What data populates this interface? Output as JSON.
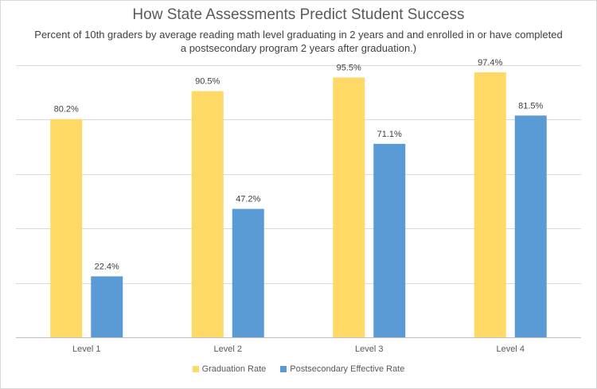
{
  "chart_data": {
    "type": "bar",
    "title": "How State Assessments  Predict Student Success",
    "subtitle": "Percent of 10th graders by average reading math level graduating in 2 years and and enrolled in or have completed a postsecondary program 2 years after graduation.)",
    "categories": [
      "Level 1",
      "Level 2",
      "Level 3",
      "Level 4"
    ],
    "series": [
      {
        "name": "Graduation Rate",
        "values": [
          80.2,
          90.5,
          95.5,
          97.4
        ],
        "labels": [
          "80.2%",
          "90.5%",
          "95.5%",
          "97.4%"
        ],
        "color": "#FFD966"
      },
      {
        "name": "Postsecondary Effective Rate",
        "values": [
          22.4,
          47.2,
          71.1,
          81.5
        ],
        "labels": [
          "22.4%",
          "47.2%",
          "71.1%",
          "81.5%"
        ],
        "color": "#5B9BD5"
      }
    ],
    "ylim": [
      0,
      100
    ],
    "gridlines": true,
    "y_tick_labels_visible": false,
    "legend_position": "bottom"
  }
}
